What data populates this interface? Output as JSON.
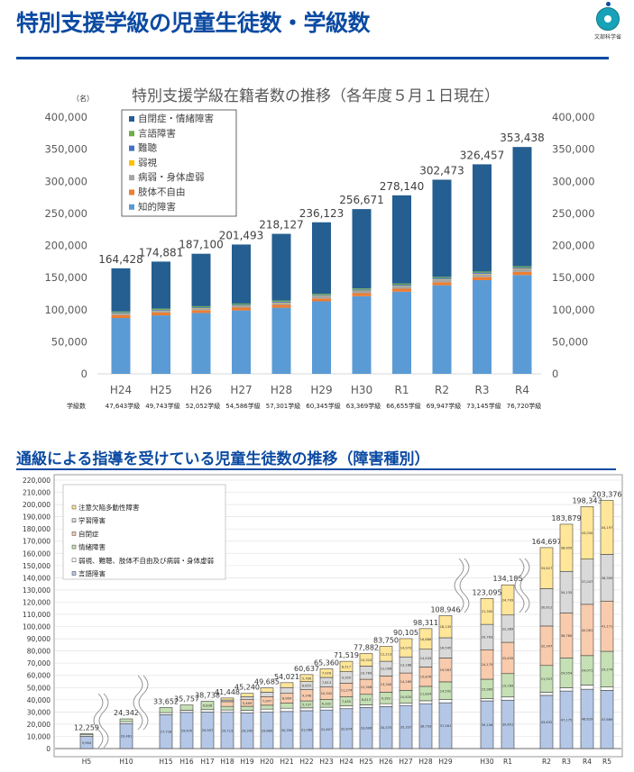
{
  "header": {
    "title": "特別支援学級の児童生徒数・学級数",
    "logo_text": "文部科学省"
  },
  "section2": {
    "title": "通級による指導を受けている児童生徒数の推移（障害種別）"
  },
  "chart_data": [
    {
      "type": "bar",
      "stacked": true,
      "title": "特別支援学級在籍者数の推移（各年度５月１日現在）",
      "ylabel": "（名）",
      "ylim": [
        0,
        400000
      ],
      "yticks": [
        "0",
        "50,000",
        "100,000",
        "150,000",
        "200,000",
        "250,000",
        "300,000",
        "350,000",
        "400,000"
      ],
      "categories": [
        "H24",
        "H25",
        "H26",
        "H27",
        "H28",
        "H29",
        "H30",
        "R1",
        "R2",
        "R3",
        "R4"
      ],
      "totals": [
        164428,
        174881,
        187100,
        201493,
        218127,
        236123,
        256671,
        278140,
        302473,
        326457,
        353438
      ],
      "total_labels": [
        "164,428",
        "174,881",
        "187,100",
        "201,493",
        "218,127",
        "236,123",
        "256,671",
        "278,140",
        "302,473",
        "326,457",
        "353,438"
      ],
      "class_count_label": "学級数",
      "class_counts": [
        "47,643学級",
        "49,743学級",
        "52,052学級",
        "54,586学級",
        "57,301学級",
        "60,345学級",
        "63,369学級",
        "66,655学級",
        "69,947学級",
        "73,145学級",
        "76,720学級"
      ],
      "legend_position": "top-left",
      "series": [
        {
          "name": "知的障害",
          "color": "#5b9bd5",
          "values": [
            86960,
            91144,
            94821,
            98803,
            103000,
            113000,
            121000,
            128000,
            138000,
            146000,
            154000
          ]
        },
        {
          "name": "肢体不自由",
          "color": "#ed7d31",
          "values": [
            4300,
            4374,
            4364,
            4372,
            4418,
            4508,
            4597,
            4644,
            4685,
            4669,
            4707
          ]
        },
        {
          "name": "病弱・身体虚弱",
          "color": "#a5a5a5",
          "values": [
            2570,
            2570,
            2650,
            2778,
            3030,
            3501,
            3586,
            3922,
            4356,
            4646,
            4862
          ]
        },
        {
          "name": "弱視",
          "color": "#ffc000",
          "values": [
            460,
            470,
            493,
            521,
            527,
            547,
            557,
            575,
            582,
            594,
            611
          ]
        },
        {
          "name": "難聴",
          "color": "#4472c4",
          "values": [
            1334,
            1362,
            1408,
            1455,
            1519,
            1617,
            1704,
            1796,
            1835,
            1861,
            1893
          ]
        },
        {
          "name": "言語障害",
          "color": "#70ad47",
          "values": [
            1494,
            1569,
            1616,
            1633,
            1683,
            1650,
            1673,
            1706,
            1625,
            1664,
            1652
          ]
        },
        {
          "name": "自閉症・情緒障害",
          "color": "#255e91",
          "values": [
            67310,
            73392,
            81748,
            91931,
            103950,
            111300,
            123554,
            137497,
            151390,
            167023,
            185713
          ]
        }
      ],
      "legend_order": [
        "自閉症・情緒障害",
        "言語障害",
        "難聴",
        "弱視",
        "病弱・身体虚弱",
        "肢体不自由",
        "知的障害"
      ]
    },
    {
      "type": "bar",
      "stacked": true,
      "ylim": [
        0,
        220000
      ],
      "yticks": [
        "0",
        "10,000",
        "20,000",
        "30,000",
        "40,000",
        "50,000",
        "60,000",
        "70,000",
        "80,000",
        "90,000",
        "100,000",
        "110,000",
        "120,000",
        "130,000",
        "140,000",
        "150,000",
        "160,000",
        "170,000",
        "180,000",
        "190,000",
        "200,000",
        "210,000",
        "220,000"
      ],
      "categories": [
        "H5",
        "H10",
        "H15",
        "H16",
        "H17",
        "H18",
        "H19",
        "H20",
        "H21",
        "H22",
        "H23",
        "H24",
        "H25",
        "H26",
        "H27",
        "H28",
        "H29",
        "H30",
        "R1",
        "R2",
        "R3",
        "R4",
        "R5"
      ],
      "axis_breaks_after": [
        "H5",
        "H10",
        "H29",
        "R1"
      ],
      "total_labels": [
        "12,259",
        "24,342",
        "33,652",
        "35,757",
        "38,738",
        "41,448",
        "45,240",
        "49,685",
        "54,021",
        "60,637",
        "65,360",
        "71,519",
        "77,882",
        "83,750",
        "90,105",
        "98,311",
        "108,946",
        "123,095",
        "134,185",
        "164,697",
        "183,879",
        "198,343",
        "203,376"
      ],
      "legend_position": "top-left",
      "series": [
        {
          "name": "言語障害",
          "color": "#b4c7e7",
          "values": [
            9964,
            20461,
            27718,
            29670,
            29907,
            29713,
            29345,
            29860,
            30390,
            31066,
            31607,
            32674,
            33606,
            34375,
            35337,
            36793,
            37561,
            39106,
            39691,
            43632,
            47175,
            48629,
            47669
          ]
        },
        {
          "name": "弱視、難聴、肢体不自由及び病弱・身体虚弱",
          "color": "#ffffff",
          "values": [
            1268,
            1580,
            1750,
            1755,
            1995,
            1943,
            2108,
            2493,
            2695,
            2265,
            2240,
            2254,
            2262,
            2424,
            1798,
            2389,
            2546,
            1771,
            2572,
            2542,
            2605,
            3485,
            2765
          ]
        },
        {
          "name": "情緒障害",
          "color": "#c5e0b4",
          "values": [
            1027,
            2301,
            4184,
            4332,
            6836,
            2898,
            3197,
            3197,
            4133,
            5737,
            6332,
            7450,
            8613,
            9392,
            10620,
            11824,
            14592,
            15960,
            19189,
            21937,
            24554,
            24071,
            29274
          ]
        },
        {
          "name": "自閉症",
          "color": "#f8cbad",
          "values": [
            0,
            0,
            0,
            0,
            0,
            3912,
            5469,
            7047,
            8064,
            9148,
            10342,
            11274,
            12308,
            13340,
            14189,
            15876,
            19567,
            24175,
            25635,
            32347,
            36760,
            42061,
            41171
          ]
        },
        {
          "name": "学習障害",
          "color": "#d9d9d9",
          "values": [
            0,
            0,
            0,
            0,
            0,
            1351,
            2485,
            3682,
            4726,
            6655,
            7813,
            9350,
            10769,
            12006,
            13188,
            14543,
            16545,
            20783,
            22389,
            30612,
            34135,
            37047,
            38300
          ]
        },
        {
          "name": "注意欠陥多動性障害",
          "color": "#ffe699",
          "values": [
            0,
            0,
            0,
            0,
            0,
            1631,
            2636,
            3406,
            4013,
            5766,
            7026,
            8517,
            10324,
            12213,
            14973,
            16886,
            18135,
            21300,
            24709,
            33627,
            38650,
            43050,
            44197
          ]
        }
      ],
      "legend_order": [
        "注意欠陥多動性障害",
        "学習障害",
        "自閉症",
        "情緒障害",
        "弱視、難聴、肢体不自由及び病弱・身体虚弱",
        "言語障害"
      ]
    }
  ]
}
